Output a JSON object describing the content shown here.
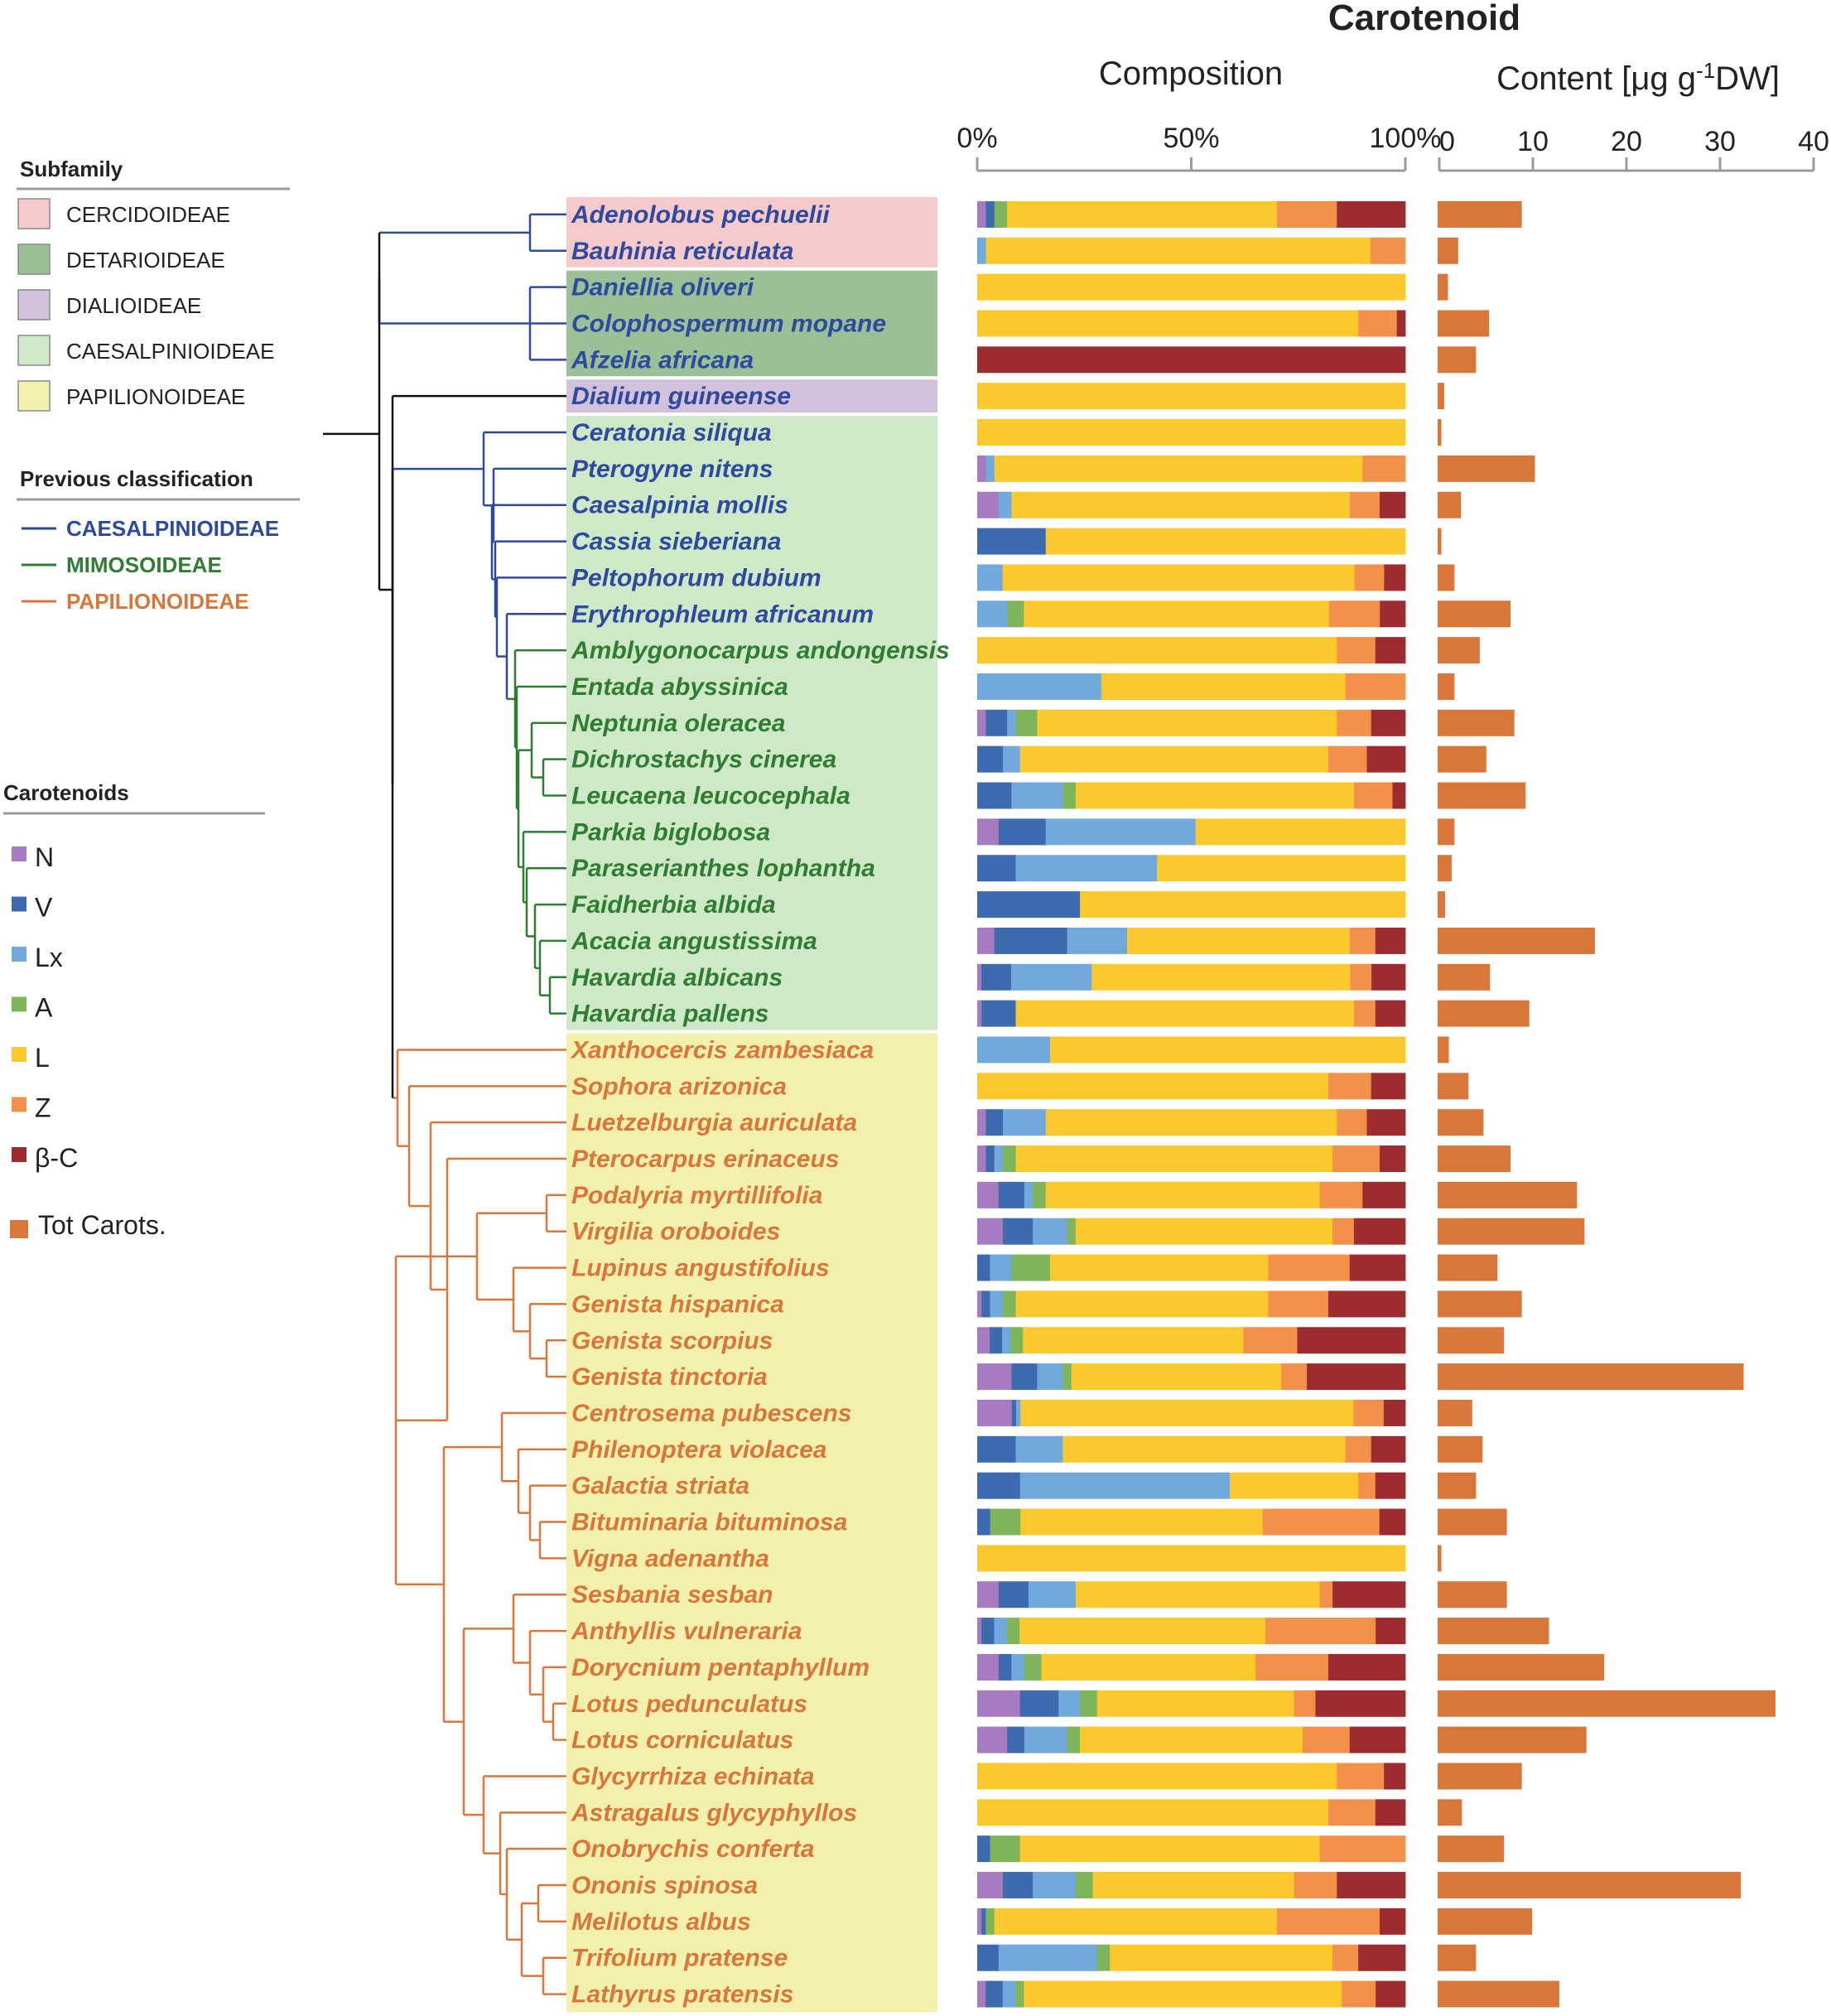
{
  "title": "Carotenoid",
  "composition_label": "Composition",
  "content_label_pre": "Content [μg g",
  "content_label_sup": "-1",
  "content_label_post": "DW]",
  "legend": {
    "subfamily_title": "Subfamily",
    "subfamilies": [
      {
        "name": "CERCIDOIDEAE",
        "color": "#f6c9cb"
      },
      {
        "name": "DETARIOIDEAE",
        "color": "#9bbf97"
      },
      {
        "name": "DIALIOIDEAE",
        "color": "#d3c1db"
      },
      {
        "name": "CAESALPINIOIDEAE",
        "color": "#cfe9c8"
      },
      {
        "name": "PAPILIONOIDEAE",
        "color": "#f2f0ac"
      }
    ],
    "classification_title": "Previous classification",
    "classifications": [
      {
        "name": "CAESALPINIOIDEAE",
        "color": "#2e4a9e"
      },
      {
        "name": "MIMOSOIDEAE",
        "color": "#2e7d32"
      },
      {
        "name": "PAPILIONOIDEAE",
        "color": "#d9773b"
      }
    ],
    "carotenoids_title": "Carotenoids",
    "carotenoids": [
      {
        "name": "N",
        "color": "#a77bbf"
      },
      {
        "name": "V",
        "color": "#3e6aaf"
      },
      {
        "name": "Lx",
        "color": "#72a9dc"
      },
      {
        "name": "A",
        "color": "#7fb55a"
      },
      {
        "name": "L",
        "color": "#fbc92d"
      },
      {
        "name": "Z",
        "color": "#f3914a"
      },
      {
        "name": "β-C",
        "color": "#9e2b2f"
      }
    ],
    "total_label": "Tot Carots.",
    "total_color": "#d9773b"
  },
  "chart_data": [
    {
      "type": "bar",
      "orientation": "horizontal",
      "stacked": true,
      "title": "Composition",
      "unit": "%",
      "xlim": [
        0,
        100
      ],
      "ticks": [
        "0%",
        "50%",
        "100%"
      ],
      "segment_order": [
        "N",
        "V",
        "Lx",
        "A",
        "L",
        "Z",
        "β-C"
      ],
      "categories": [
        "Adenolobus pechuelii",
        "Bauhinia reticulata",
        "Daniellia oliveri",
        "Colophospermum mopane",
        "Afzelia africana",
        "Dialium guineense",
        "Ceratonia siliqua",
        "Pterogyne nitens",
        "Caesalpinia mollis",
        "Cassia sieberiana",
        "Peltophorum dubium",
        "Erythrophleum africanum",
        "Amblygonocarpus andongensis",
        "Entada abyssinica",
        "Neptunia oleracea",
        "Dichrostachys cinerea",
        "Leucaena leucocephala",
        "Parkia biglobosa",
        "Paraserianthes lophantha",
        "Faidherbia albida",
        "Acacia angustissima",
        "Havardia albicans",
        "Havardia pallens",
        "Xanthocercis zambesiaca",
        "Sophora arizonica",
        "Luetzelburgia auriculata",
        "Pterocarpus erinaceus",
        "Podalyria myrtillifolia",
        "Virgilia oroboides",
        "Lupinus angustifolius",
        "Genista hispanica",
        "Genista scorpius",
        "Genista tinctoria",
        "Centrosema pubescens",
        "Philenoptera violacea",
        "Galactia striata",
        "Bituminaria bituminosa",
        "Vigna adenantha",
        "Sesbania sesban",
        "Anthyllis vulneraria",
        "Dorycnium pentaphyllum",
        "Lotus pedunculatus",
        "Lotus corniculatus",
        "Glycyrrhiza echinata",
        "Astragalus glycyphyllos",
        "Onobrychis conferta",
        "Ononis spinosa",
        "Melilotus albus",
        "Trifolium pratense",
        "Lathyrus pratensis"
      ],
      "subfamily": [
        "CERCIDOIDEAE",
        "CERCIDOIDEAE",
        "DETARIOIDEAE",
        "DETARIOIDEAE",
        "DETARIOIDEAE",
        "DIALIOIDEAE",
        "CAESALPINIOIDEAE",
        "CAESALPINIOIDEAE",
        "CAESALPINIOIDEAE",
        "CAESALPINIOIDEAE",
        "CAESALPINIOIDEAE",
        "CAESALPINIOIDEAE",
        "CAESALPINIOIDEAE",
        "CAESALPINIOIDEAE",
        "CAESALPINIOIDEAE",
        "CAESALPINIOIDEAE",
        "CAESALPINIOIDEAE",
        "CAESALPINIOIDEAE",
        "CAESALPINIOIDEAE",
        "CAESALPINIOIDEAE",
        "CAESALPINIOIDEAE",
        "CAESALPINIOIDEAE",
        "CAESALPINIOIDEAE",
        "PAPILIONOIDEAE",
        "PAPILIONOIDEAE",
        "PAPILIONOIDEAE",
        "PAPILIONOIDEAE",
        "PAPILIONOIDEAE",
        "PAPILIONOIDEAE",
        "PAPILIONOIDEAE",
        "PAPILIONOIDEAE",
        "PAPILIONOIDEAE",
        "PAPILIONOIDEAE",
        "PAPILIONOIDEAE",
        "PAPILIONOIDEAE",
        "PAPILIONOIDEAE",
        "PAPILIONOIDEAE",
        "PAPILIONOIDEAE",
        "PAPILIONOIDEAE",
        "PAPILIONOIDEAE",
        "PAPILIONOIDEAE",
        "PAPILIONOIDEAE",
        "PAPILIONOIDEAE",
        "PAPILIONOIDEAE",
        "PAPILIONOIDEAE",
        "PAPILIONOIDEAE",
        "PAPILIONOIDEAE",
        "PAPILIONOIDEAE",
        "PAPILIONOIDEAE",
        "PAPILIONOIDEAE"
      ],
      "previous_classification": [
        "CAESALPINIOIDEAE",
        "CAESALPINIOIDEAE",
        "CAESALPINIOIDEAE",
        "CAESALPINIOIDEAE",
        "CAESALPINIOIDEAE",
        "CAESALPINIOIDEAE",
        "CAESALPINIOIDEAE",
        "CAESALPINIOIDEAE",
        "CAESALPINIOIDEAE",
        "CAESALPINIOIDEAE",
        "CAESALPINIOIDEAE",
        "CAESALPINIOIDEAE",
        "MIMOSOIDEAE",
        "MIMOSOIDEAE",
        "MIMOSOIDEAE",
        "MIMOSOIDEAE",
        "MIMOSOIDEAE",
        "MIMOSOIDEAE",
        "MIMOSOIDEAE",
        "MIMOSOIDEAE",
        "MIMOSOIDEAE",
        "MIMOSOIDEAE",
        "MIMOSOIDEAE",
        "PAPILIONOIDEAE",
        "PAPILIONOIDEAE",
        "PAPILIONOIDEAE",
        "PAPILIONOIDEAE",
        "PAPILIONOIDEAE",
        "PAPILIONOIDEAE",
        "PAPILIONOIDEAE",
        "PAPILIONOIDEAE",
        "PAPILIONOIDEAE",
        "PAPILIONOIDEAE",
        "PAPILIONOIDEAE",
        "PAPILIONOIDEAE",
        "PAPILIONOIDEAE",
        "PAPILIONOIDEAE",
        "PAPILIONOIDEAE",
        "PAPILIONOIDEAE",
        "PAPILIONOIDEAE",
        "PAPILIONOIDEAE",
        "PAPILIONOIDEAE",
        "PAPILIONOIDEAE",
        "PAPILIONOIDEAE",
        "PAPILIONOIDEAE",
        "PAPILIONOIDEAE",
        "PAPILIONOIDEAE",
        "PAPILIONOIDEAE",
        "PAPILIONOIDEAE",
        "PAPILIONOIDEAE"
      ],
      "values": [
        [
          2,
          2,
          0,
          3,
          63,
          14,
          16
        ],
        [
          0,
          0,
          2,
          0,
          88,
          8,
          0
        ],
        [
          0,
          0,
          0,
          0,
          100,
          0,
          0
        ],
        [
          0,
          0,
          0,
          0,
          89,
          9,
          2
        ],
        [
          0,
          0,
          0,
          0,
          0,
          0,
          100
        ],
        [
          0,
          0,
          0,
          0,
          100,
          0,
          0
        ],
        [
          0,
          0,
          0,
          0,
          100,
          0,
          0
        ],
        [
          2,
          0,
          2,
          0,
          86,
          10,
          0
        ],
        [
          5,
          0,
          3,
          0,
          79,
          7,
          6
        ],
        [
          0,
          16,
          0,
          0,
          84,
          0,
          0
        ],
        [
          0,
          0,
          6,
          0,
          83,
          7,
          5
        ],
        [
          0,
          0,
          7,
          4,
          72,
          12,
          6
        ],
        [
          0,
          0,
          0,
          0,
          84,
          9,
          7
        ],
        [
          0,
          0,
          29,
          0,
          57,
          14,
          0
        ],
        [
          2,
          5,
          2,
          5,
          70,
          8,
          8
        ],
        [
          0,
          6,
          4,
          0,
          72,
          9,
          9
        ],
        [
          0,
          8,
          12,
          3,
          65,
          9,
          3
        ],
        [
          5,
          11,
          35,
          0,
          49,
          0,
          0
        ],
        [
          0,
          9,
          33,
          0,
          58,
          0,
          0
        ],
        [
          0,
          24,
          0,
          0,
          76,
          0,
          0
        ],
        [
          4,
          17,
          14,
          0,
          52,
          6,
          7
        ],
        [
          1,
          7,
          19,
          0,
          61,
          5,
          8
        ],
        [
          1,
          8,
          0,
          0,
          79,
          5,
          7
        ],
        [
          0,
          0,
          17,
          0,
          83,
          0,
          0
        ],
        [
          0,
          0,
          0,
          0,
          82,
          10,
          8
        ],
        [
          2,
          4,
          10,
          0,
          68,
          7,
          9
        ],
        [
          2,
          2,
          2,
          3,
          74,
          11,
          6
        ],
        [
          5,
          6,
          2,
          3,
          64,
          10,
          10
        ],
        [
          6,
          7,
          8,
          2,
          60,
          5,
          12
        ],
        [
          0,
          3,
          5,
          9,
          51,
          19,
          13
        ],
        [
          1,
          2,
          3,
          3,
          59,
          14,
          18
        ],
        [
          3,
          3,
          2,
          3,
          53,
          13,
          26
        ],
        [
          8,
          6,
          6,
          2,
          49,
          6,
          23
        ],
        [
          8,
          1,
          1,
          0,
          77,
          7,
          5
        ],
        [
          0,
          9,
          11,
          0,
          66,
          6,
          8
        ],
        [
          0,
          10,
          49,
          0,
          30,
          4,
          7
        ],
        [
          0,
          3,
          0,
          7,
          56,
          27,
          6
        ],
        [
          0,
          0,
          0,
          0,
          100,
          0,
          0
        ],
        [
          5,
          7,
          11,
          0,
          57,
          3,
          17
        ],
        [
          1,
          3,
          3,
          3,
          58,
          26,
          7
        ],
        [
          5,
          3,
          3,
          4,
          50,
          17,
          18
        ],
        [
          10,
          9,
          5,
          4,
          46,
          5,
          21
        ],
        [
          7,
          4,
          10,
          3,
          52,
          11,
          13
        ],
        [
          0,
          0,
          0,
          0,
          84,
          11,
          5
        ],
        [
          0,
          0,
          0,
          0,
          82,
          11,
          7
        ],
        [
          0,
          3,
          0,
          7,
          70,
          20,
          0
        ],
        [
          6,
          7,
          10,
          4,
          47,
          10,
          16
        ],
        [
          1,
          1,
          0,
          2,
          66,
          24,
          6
        ],
        [
          0,
          5,
          23,
          3,
          52,
          6,
          11
        ],
        [
          2,
          4,
          3,
          2,
          75,
          8,
          7
        ]
      ]
    },
    {
      "type": "bar",
      "orientation": "horizontal",
      "title": "Content [μg g-1DW]",
      "series_name": "Tot Carots.",
      "xlim": [
        0,
        40
      ],
      "ticks": [
        0,
        10,
        20,
        30,
        40
      ],
      "values": [
        9,
        2.2,
        1.1,
        5.5,
        4.1,
        0.7,
        0.4,
        10.4,
        2.5,
        0.4,
        1.8,
        7.8,
        4.5,
        1.8,
        8.2,
        5.2,
        9.4,
        1.8,
        1.5,
        0.8,
        16.8,
        5.6,
        9.8,
        1.2,
        3.3,
        4.9,
        7.8,
        14.9,
        15.7,
        6.4,
        9,
        7.1,
        32.7,
        3.7,
        4.8,
        4.1,
        7.4,
        0.4,
        7.4,
        11.9,
        17.8,
        36.1,
        15.9,
        9,
        2.6,
        7.1,
        32.4,
        10.1,
        4.1,
        13
      ]
    }
  ]
}
